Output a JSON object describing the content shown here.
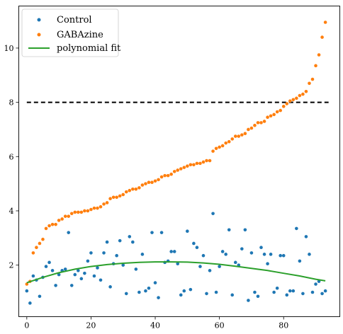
{
  "chart_data": {
    "type": "scatter",
    "xlim": [
      -2.5,
      97.5
    ],
    "ylim": [
      0.1,
      11.55
    ],
    "xticks": [
      0,
      20,
      40,
      60,
      80
    ],
    "yticks": [
      2,
      4,
      6,
      8,
      10
    ],
    "grid": false,
    "legend_position": "top-left",
    "legend": [
      "Control",
      "GABAzine",
      "polynomial fit"
    ],
    "threshold": {
      "y": 8,
      "x_range": [
        0,
        94
      ],
      "style": "dashed",
      "color": "#000000"
    },
    "series": [
      {
        "name": "Control",
        "kind": "scatter",
        "color": "#1f77b4",
        "x": [
          0,
          1,
          2,
          3,
          4,
          5,
          6,
          7,
          8,
          9,
          10,
          11,
          12,
          13,
          14,
          15,
          16,
          17,
          18,
          19,
          20,
          21,
          22,
          23,
          24,
          25,
          26,
          27,
          28,
          29,
          30,
          31,
          32,
          33,
          34,
          35,
          36,
          37,
          38,
          39,
          40,
          41,
          42,
          43,
          44,
          45,
          46,
          47,
          48,
          49,
          50,
          51,
          52,
          53,
          54,
          55,
          56,
          57,
          58,
          59,
          60,
          61,
          62,
          63,
          64,
          65,
          66,
          67,
          68,
          69,
          70,
          71,
          72,
          73,
          74,
          75,
          76,
          77,
          78,
          79,
          80,
          81,
          82,
          83,
          84,
          85,
          86,
          87,
          88,
          89,
          90,
          91,
          92,
          93
        ],
        "y": [
          1.05,
          0.6,
          1.6,
          1.45,
          0.85,
          1.55,
          1.95,
          2.1,
          1.8,
          1.25,
          1.65,
          1.8,
          1.85,
          3.2,
          1.25,
          1.65,
          1.8,
          1.5,
          1.7,
          2.15,
          2.45,
          1.6,
          1.9,
          1.45,
          2.45,
          2.85,
          1.2,
          2.05,
          2.35,
          2.9,
          2.0,
          0.95,
          3.05,
          2.85,
          1.85,
          1.0,
          2.4,
          1.05,
          1.15,
          3.2,
          1.35,
          0.8,
          3.2,
          2.1,
          2.15,
          2.5,
          2.5,
          2.05,
          0.9,
          1.05,
          3.25,
          1.1,
          2.8,
          2.65,
          1.95,
          2.35,
          0.95,
          1.8,
          3.9,
          1.0,
          1.95,
          2.5,
          2.4,
          3.3,
          0.9,
          2.1,
          2.0,
          2.6,
          3.3,
          0.7,
          2.45,
          1.0,
          0.85,
          2.65,
          2.4,
          2.05,
          2.4,
          1.0,
          1.15,
          2.35,
          2.35,
          0.9,
          1.05,
          1.05,
          3.35,
          2.15,
          0.95,
          3.05,
          2.4,
          1.0,
          1.3,
          1.4,
          0.95,
          1.05
        ]
      },
      {
        "name": "GABAzine",
        "kind": "scatter",
        "color": "#ff7f0e",
        "x": [
          0,
          1,
          2,
          3,
          4,
          5,
          6,
          7,
          8,
          9,
          10,
          11,
          12,
          13,
          14,
          15,
          16,
          17,
          18,
          19,
          20,
          21,
          22,
          23,
          24,
          25,
          26,
          27,
          28,
          29,
          30,
          31,
          32,
          33,
          34,
          35,
          36,
          37,
          38,
          39,
          40,
          41,
          42,
          43,
          44,
          45,
          46,
          47,
          48,
          49,
          50,
          51,
          52,
          53,
          54,
          55,
          56,
          57,
          58,
          59,
          60,
          61,
          62,
          63,
          64,
          65,
          66,
          67,
          68,
          69,
          70,
          71,
          72,
          73,
          74,
          75,
          76,
          77,
          78,
          79,
          80,
          81,
          82,
          83,
          84,
          85,
          86,
          87,
          88,
          89,
          90,
          91,
          92,
          93
        ],
        "y": [
          1.3,
          1.4,
          2.45,
          2.65,
          2.8,
          2.95,
          3.35,
          3.45,
          3.5,
          3.5,
          3.65,
          3.7,
          3.8,
          3.8,
          3.9,
          3.95,
          3.95,
          3.95,
          4.0,
          4.0,
          4.05,
          4.1,
          4.1,
          4.15,
          4.25,
          4.3,
          4.45,
          4.5,
          4.5,
          4.55,
          4.6,
          4.7,
          4.75,
          4.8,
          4.8,
          4.85,
          4.95,
          5.0,
          5.05,
          5.05,
          5.1,
          5.15,
          5.25,
          5.3,
          5.3,
          5.35,
          5.45,
          5.5,
          5.55,
          5.6,
          5.65,
          5.7,
          5.7,
          5.75,
          5.75,
          5.8,
          5.85,
          5.85,
          6.2,
          6.3,
          6.35,
          6.4,
          6.5,
          6.55,
          6.65,
          6.75,
          6.75,
          6.8,
          6.85,
          7.0,
          7.05,
          7.15,
          7.25,
          7.25,
          7.3,
          7.45,
          7.5,
          7.55,
          7.65,
          7.7,
          7.85,
          7.95,
          8.05,
          8.1,
          8.15,
          8.25,
          8.3,
          8.4,
          8.7,
          8.85,
          9.35,
          9.75,
          10.4,
          10.95
        ]
      },
      {
        "name": "polynomial fit",
        "kind": "line",
        "color": "#2ca02c",
        "x": [
          0,
          5,
          10,
          15,
          20,
          25,
          30,
          35,
          40,
          45,
          50,
          55,
          60,
          65,
          70,
          75,
          80,
          85,
          90,
          93
        ],
        "y": [
          1.35,
          1.55,
          1.72,
          1.85,
          1.95,
          2.02,
          2.07,
          2.1,
          2.12,
          2.12,
          2.11,
          2.08,
          2.03,
          1.96,
          1.88,
          1.8,
          1.7,
          1.6,
          1.48,
          1.42
        ]
      }
    ]
  }
}
